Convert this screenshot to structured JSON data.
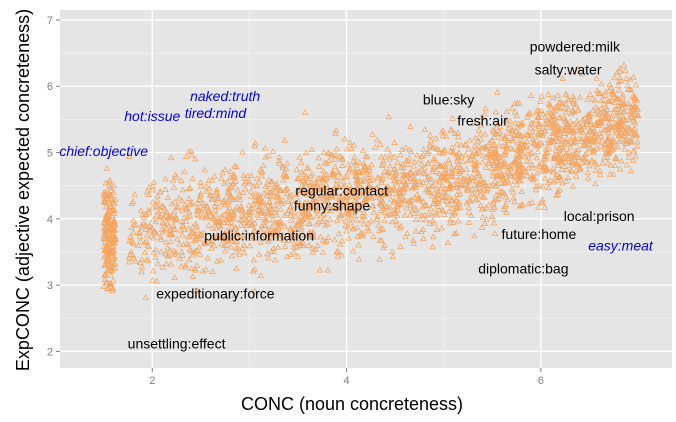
{
  "chart_data": {
    "type": "scatter",
    "title": "",
    "xlabel": "CONC (noun concreteness)",
    "ylabel": "ExpCONC (adjective expected concreteness)",
    "xlim": [
      1.05,
      7.35
    ],
    "ylim": [
      1.75,
      7.15
    ],
    "x_ticks": [
      2,
      4,
      6
    ],
    "y_ticks": [
      2,
      3,
      4,
      5,
      6,
      7
    ],
    "x_tick_labels": [
      "2",
      "4",
      "6"
    ],
    "y_tick_labels": [
      "2",
      "3",
      "4",
      "5",
      "6",
      "7"
    ],
    "grid": true,
    "legend": "none",
    "point_shape": "triangle",
    "point_color": "#F4A460",
    "panel_color": "#E5E5E5",
    "grid_major_color": "#FFFFFF",
    "grid_minor_color": "#F2F2F2",
    "annotations": [
      {
        "text": "powdered:milk",
        "x": 6.35,
        "y": 6.6,
        "color": "#000000",
        "italic": false
      },
      {
        "text": "salty:water",
        "x": 6.28,
        "y": 6.25,
        "color": "#000000",
        "italic": false
      },
      {
        "text": "blue:sky",
        "x": 5.05,
        "y": 5.8,
        "color": "#000000",
        "italic": false
      },
      {
        "text": "fresh:air",
        "x": 5.4,
        "y": 5.48,
        "color": "#000000",
        "italic": false
      },
      {
        "text": "regular:contact",
        "x": 3.95,
        "y": 4.43,
        "color": "#000000",
        "italic": false
      },
      {
        "text": "funny:shape",
        "x": 3.85,
        "y": 4.2,
        "color": "#000000",
        "italic": false
      },
      {
        "text": "public:information",
        "x": 3.1,
        "y": 3.75,
        "color": "#000000",
        "italic": false
      },
      {
        "text": "local:prison",
        "x": 6.6,
        "y": 4.04,
        "color": "#000000",
        "italic": false
      },
      {
        "text": "future:home",
        "x": 5.98,
        "y": 3.77,
        "color": "#000000",
        "italic": false
      },
      {
        "text": "diplomatic:bag",
        "x": 5.82,
        "y": 3.25,
        "color": "#000000",
        "italic": false
      },
      {
        "text": "easy:meat",
        "x": 6.82,
        "y": 3.6,
        "color": "#0000EE",
        "italic": true
      },
      {
        "text": "expeditionary:force",
        "x": 2.65,
        "y": 2.87,
        "color": "#000000",
        "italic": false
      },
      {
        "text": "unsettling:effect",
        "x": 2.25,
        "y": 2.12,
        "color": "#000000",
        "italic": false
      },
      {
        "text": "naked:truth",
        "x": 2.75,
        "y": 5.85,
        "color": "#0000EE",
        "italic": true
      },
      {
        "text": "tired:mind",
        "x": 2.65,
        "y": 5.6,
        "color": "#0000EE",
        "italic": true
      },
      {
        "text": "hot:issue",
        "x": 2.0,
        "y": 5.55,
        "color": "#0000EE",
        "italic": true
      },
      {
        "text": "chief:objective",
        "x": 1.5,
        "y": 5.02,
        "color": "#0000EE",
        "italic": true
      }
    ]
  }
}
